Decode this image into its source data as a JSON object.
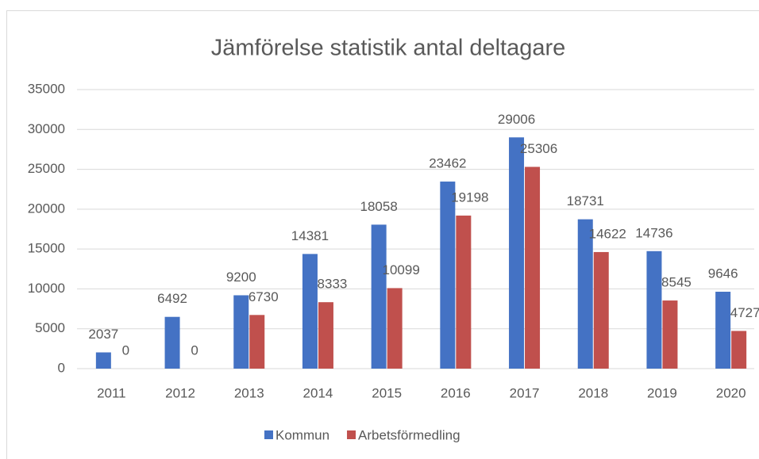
{
  "chart_data": {
    "type": "bar",
    "title": "Jämförelse statistik antal deltagare",
    "categories": [
      "2011",
      "2012",
      "2013",
      "2014",
      "2015",
      "2016",
      "2017",
      "2018",
      "2019",
      "2020"
    ],
    "series": [
      {
        "name": "Kommun",
        "color": "#4472c4",
        "values": [
          2037,
          6492,
          9200,
          14381,
          18058,
          23462,
          29006,
          18731,
          14736,
          9646
        ]
      },
      {
        "name": "Arbetsförmedling",
        "color": "#c0504d",
        "values": [
          0,
          0,
          6730,
          8333,
          10099,
          19198,
          25306,
          14622,
          8545,
          4727
        ]
      }
    ],
    "ylim": [
      0,
      35000
    ],
    "yticks": [
      0,
      5000,
      10000,
      15000,
      20000,
      25000,
      30000,
      35000
    ],
    "grid": true,
    "legend": "bottom"
  }
}
